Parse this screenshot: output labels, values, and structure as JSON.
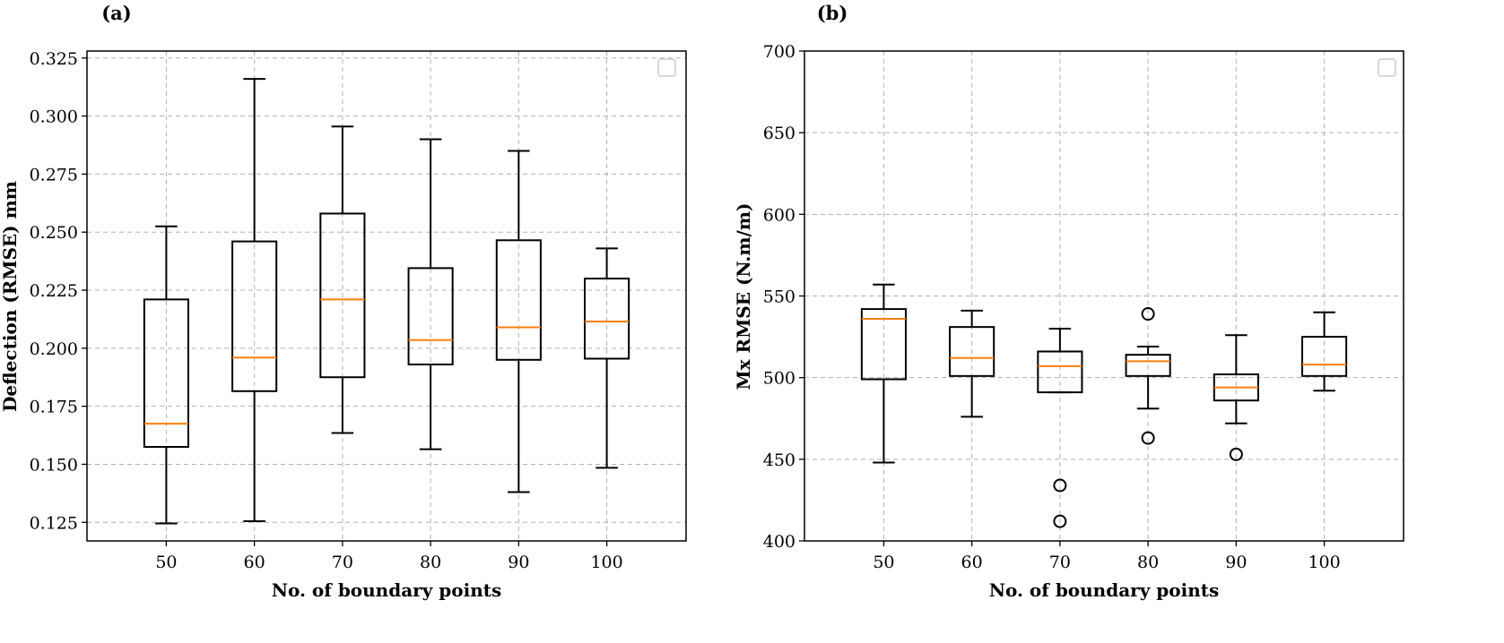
{
  "chart_data": [
    {
      "type": "box",
      "panel_label": "(a)",
      "xlabel": "No. of boundary points",
      "ylabel": "Deflection (RMSE) mm",
      "categories": [
        "50",
        "60",
        "70",
        "80",
        "90",
        "100"
      ],
      "ylim": [
        0.117,
        0.328
      ],
      "yticks": [
        "0.125",
        "0.150",
        "0.175",
        "0.200",
        "0.225",
        "0.250",
        "0.275",
        "0.300",
        "0.325"
      ],
      "grid": true,
      "legend": "top-right (empty)",
      "boxes": [
        {
          "category": "50",
          "whislo": 0.1245,
          "q1": 0.1575,
          "median": 0.1675,
          "q3": 0.221,
          "whishi": 0.2525,
          "fliers": []
        },
        {
          "category": "60",
          "whislo": 0.1255,
          "q1": 0.1815,
          "median": 0.196,
          "q3": 0.246,
          "whishi": 0.316,
          "fliers": []
        },
        {
          "category": "70",
          "whislo": 0.1635,
          "q1": 0.1875,
          "median": 0.221,
          "q3": 0.258,
          "whishi": 0.2955,
          "fliers": []
        },
        {
          "category": "80",
          "whislo": 0.1565,
          "q1": 0.193,
          "median": 0.2035,
          "q3": 0.2345,
          "whishi": 0.29,
          "fliers": []
        },
        {
          "category": "90",
          "whislo": 0.138,
          "q1": 0.195,
          "median": 0.209,
          "q3": 0.2465,
          "whishi": 0.285,
          "fliers": []
        },
        {
          "category": "100",
          "whislo": 0.1485,
          "q1": 0.1955,
          "median": 0.2115,
          "q3": 0.23,
          "whishi": 0.243,
          "fliers": []
        }
      ]
    },
    {
      "type": "box",
      "panel_label": "(b)",
      "xlabel": "No. of boundary points",
      "ylabel": "Mx RMSE (N.m/m)",
      "categories": [
        "50",
        "60",
        "70",
        "80",
        "90",
        "100"
      ],
      "ylim": [
        400,
        700
      ],
      "yticks": [
        "400",
        "450",
        "500",
        "550",
        "600",
        "650",
        "700"
      ],
      "grid": true,
      "legend": "top-right (empty)",
      "boxes": [
        {
          "category": "50",
          "whislo": 448,
          "q1": 499,
          "median": 536,
          "q3": 542,
          "whishi": 557,
          "fliers": []
        },
        {
          "category": "60",
          "whislo": 476,
          "q1": 501,
          "median": 512,
          "q3": 531,
          "whishi": 541,
          "fliers": []
        },
        {
          "category": "70",
          "whislo": 491,
          "q1": 491,
          "median": 507,
          "q3": 516,
          "whishi": 530,
          "fliers": [
            434,
            412
          ]
        },
        {
          "category": "80",
          "whislo": 481,
          "q1": 501,
          "median": 510,
          "q3": 514,
          "whishi": 519,
          "fliers": [
            539,
            463
          ]
        },
        {
          "category": "90",
          "whislo": 472,
          "q1": 486,
          "median": 494,
          "q3": 502,
          "whishi": 526,
          "fliers": [
            453
          ]
        },
        {
          "category": "100",
          "whislo": 492,
          "q1": 501,
          "median": 508,
          "q3": 525,
          "whishi": 540,
          "fliers": []
        }
      ]
    }
  ]
}
